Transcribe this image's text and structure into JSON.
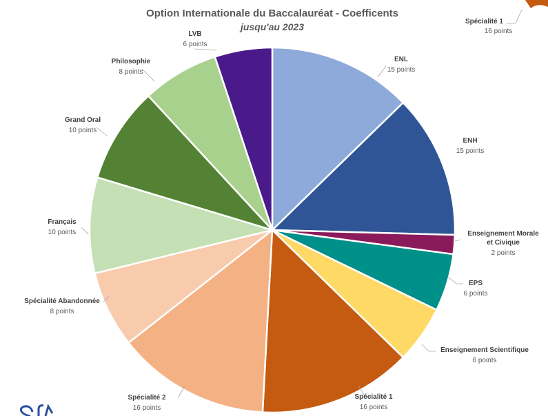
{
  "chart_data": {
    "type": "pie",
    "title": "Option Internationale du Baccalauréat - Coefficents",
    "subtitle": "jusqu'au 2023",
    "legend": "none",
    "slices": [
      {
        "name": "ENL",
        "value": 15,
        "label": "15 points",
        "color": "#8eaadb"
      },
      {
        "name": "ENH",
        "value": 15,
        "label": "15 points",
        "color": "#2f5597"
      },
      {
        "name": "Enseignement Morale et Civique",
        "name_lines": [
          "Enseignement Morale",
          "et Civique"
        ],
        "value": 2,
        "label": "2 points",
        "color": "#8b1a5a"
      },
      {
        "name": "EPS",
        "value": 6,
        "label": "6 points",
        "color": "#00908a"
      },
      {
        "name": "Enseignement Scientifique",
        "value": 6,
        "label": "6 points",
        "color": "#ffd966"
      },
      {
        "name": "Spécialité 1",
        "value": 16,
        "label": "16 points",
        "color": "#c55a11"
      },
      {
        "name": "Spécialité 2",
        "value": 16,
        "label": "16 points",
        "color": "#f4b183"
      },
      {
        "name": "Spécialité Abandonnée",
        "value": 8,
        "label": "8 points",
        "color": "#f8cbad"
      },
      {
        "name": "Français",
        "value": 10,
        "label": "10 points",
        "color": "#c5e0b4"
      },
      {
        "name": "Grand Oral",
        "value": 10,
        "label": "10 points",
        "color": "#548235"
      },
      {
        "name": "Philosophie",
        "value": 8,
        "label": "8 points",
        "color": "#a9d18e"
      },
      {
        "name": "LVB",
        "value": 6,
        "label": "6 points",
        "color": "#4b1a8a"
      }
    ],
    "callout": {
      "name": "Spécialité 1",
      "label": "16 points",
      "color": "#c55a11"
    }
  }
}
